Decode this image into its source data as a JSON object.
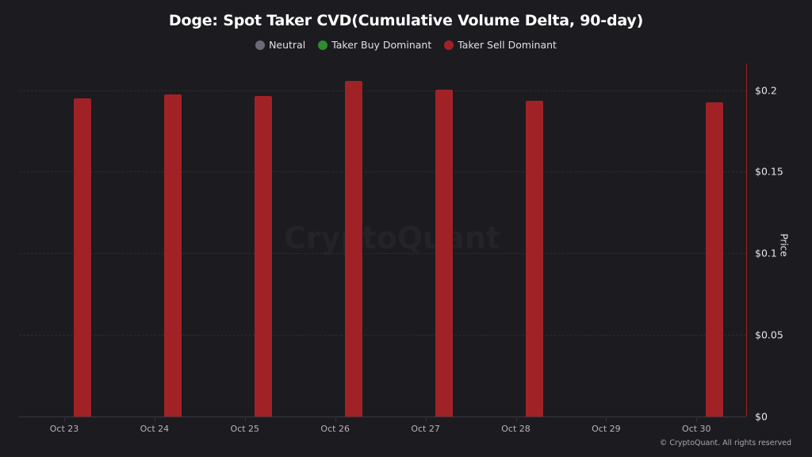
{
  "chart_data": {
    "type": "bar",
    "title": "Doge: Spot Taker CVD(Cumulative Volume Delta, 90-day)",
    "legend": [
      {
        "label": "Neutral",
        "color": "#6b6a78"
      },
      {
        "label": "Taker Buy Dominant",
        "color": "#2e8b2e"
      },
      {
        "label": "Taker Sell Dominant",
        "color": "#a12226"
      }
    ],
    "categories": [
      "Oct 23",
      "Oct 24",
      "Oct 25",
      "Oct 26",
      "Oct 27",
      "Oct 28",
      "Oct 29",
      "Oct 30"
    ],
    "series": [
      {
        "name": "Taker Sell Dominant",
        "color": "#a12226",
        "values": [
          0.195,
          0.1975,
          0.1963,
          0.2056,
          0.2001,
          0.1934,
          null,
          0.1923
        ]
      }
    ],
    "xlabel": "",
    "ylabel": "Price",
    "y_axis_position": "right",
    "yticks": [
      "$0",
      "$0.05",
      "$0.1",
      "$0.15",
      "$0.2"
    ],
    "ylim": [
      0,
      0.216
    ],
    "grid": true,
    "legend_position": "top"
  },
  "watermark": "CryptoQuant",
  "copyright": "© CryptoQuant. All rights reserved"
}
